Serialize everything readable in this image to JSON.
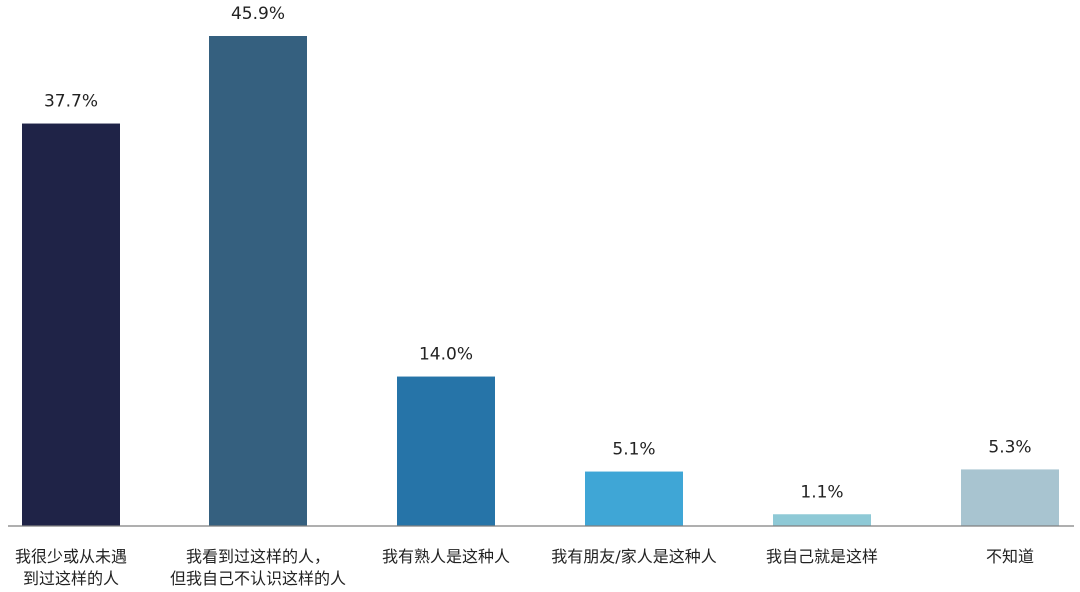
{
  "chart_data": {
    "type": "bar",
    "categories": [
      [
        "我很少或从未遇",
        "到过这样的人"
      ],
      [
        "我看到过这样的人，",
        "但我自己不认识这样的人"
      ],
      [
        "我有熟人是这种人"
      ],
      [
        "我有朋友/家人是这种人"
      ],
      [
        "我自己就是这样"
      ],
      [
        "不知道"
      ]
    ],
    "values": [
      37.7,
      45.9,
      14.0,
      5.1,
      1.1,
      5.3
    ],
    "value_labels": [
      "37.7%",
      "45.9%",
      "14.0%",
      "5.1%",
      "1.1%",
      "5.3%"
    ],
    "colors": [
      "#1f2347",
      "#35607f",
      "#2674a8",
      "#3fa6d6",
      "#8ec9d6",
      "#a8c4d0"
    ],
    "axis_color": "#7f7f7f",
    "ylim": [
      0,
      45.9
    ],
    "grid": false,
    "legend": "none"
  }
}
